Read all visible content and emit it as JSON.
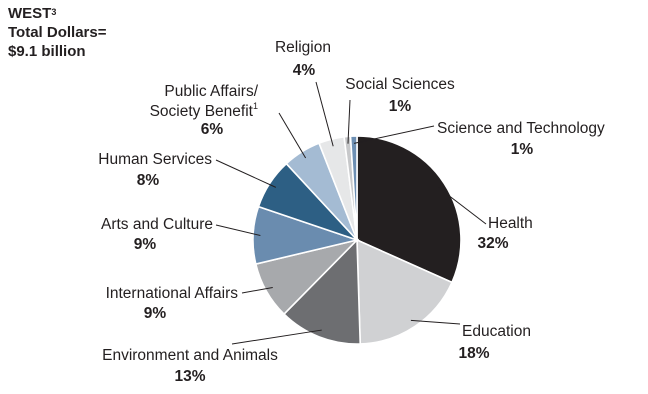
{
  "header": {
    "region": "WEST",
    "region_footnote": "3",
    "total_line": "Total Dollars=",
    "amount_line": "$9.1 billion"
  },
  "chart_data": {
    "type": "pie",
    "title": "",
    "direction": "clockwise from 12 o'clock",
    "slices": [
      {
        "label": "Health",
        "value": 32,
        "pct_label": "32%",
        "color": "#231f20"
      },
      {
        "label": "Education",
        "value": 18,
        "pct_label": "18%",
        "color": "#d0d1d3"
      },
      {
        "label": "Environment and Animals",
        "value": 13,
        "pct_label": "13%",
        "color": "#6d6e71"
      },
      {
        "label": "International Affairs",
        "value": 9,
        "pct_label": "9%",
        "color": "#a7a9ac"
      },
      {
        "label": "Arts and Culture",
        "value": 9,
        "pct_label": "9%",
        "color": "#6a8caf"
      },
      {
        "label": "Human Services",
        "value": 8,
        "pct_label": "8%",
        "color": "#2d5f84"
      },
      {
        "label": "Public Affairs/Society Benefit",
        "label_lines": [
          "Public Affairs/",
          "Society Benefit"
        ],
        "footnote": "1",
        "value": 6,
        "pct_label": "6%",
        "color": "#a4bbd3"
      },
      {
        "label": "Religion",
        "value": 4,
        "pct_label": "4%",
        "color": "#e6e7e8"
      },
      {
        "label": "Social Sciences",
        "value": 1,
        "pct_label": "1%",
        "color": "#c7c8ca"
      },
      {
        "label": "Science and Technology",
        "value": 1,
        "pct_label": "1%",
        "color": "#6d8fb3"
      }
    ]
  }
}
